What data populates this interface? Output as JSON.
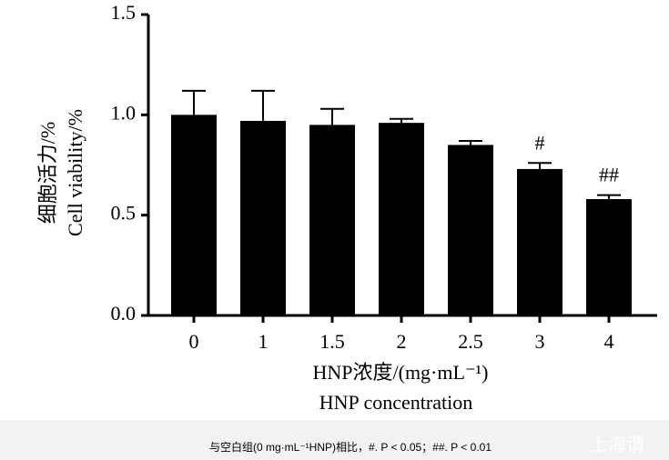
{
  "chart_data": {
    "type": "bar",
    "categories": [
      "0",
      "1",
      "1.5",
      "2",
      "2.5",
      "3",
      "4"
    ],
    "values": [
      1.0,
      0.97,
      0.95,
      0.96,
      0.85,
      0.73,
      0.58
    ],
    "errors": [
      0.12,
      0.15,
      0.08,
      0.02,
      0.02,
      0.03,
      0.02
    ],
    "color": "#000000",
    "ylim": [
      0,
      1.5
    ],
    "yticks": [
      {
        "value": 0,
        "label": "0.0"
      },
      {
        "value": 0.5,
        "label": "0.5"
      },
      {
        "value": 1.0,
        "label": "1.0"
      },
      {
        "value": 1.5,
        "label": "1.5"
      }
    ],
    "y_label": [
      "细胞活力/%",
      "Cell viability/%"
    ],
    "x_label": [
      "HNP浓度/(mg·mL⁻¹)",
      "HNP concentration"
    ],
    "annotations": [
      {
        "index": 5,
        "text": "#"
      },
      {
        "index": 6,
        "text": "##"
      }
    ],
    "caption": "与空白组(0 mg·mL⁻¹HNP)相比，#. P < 0.05；##. P < 0.01",
    "watermark": "上海谓"
  }
}
